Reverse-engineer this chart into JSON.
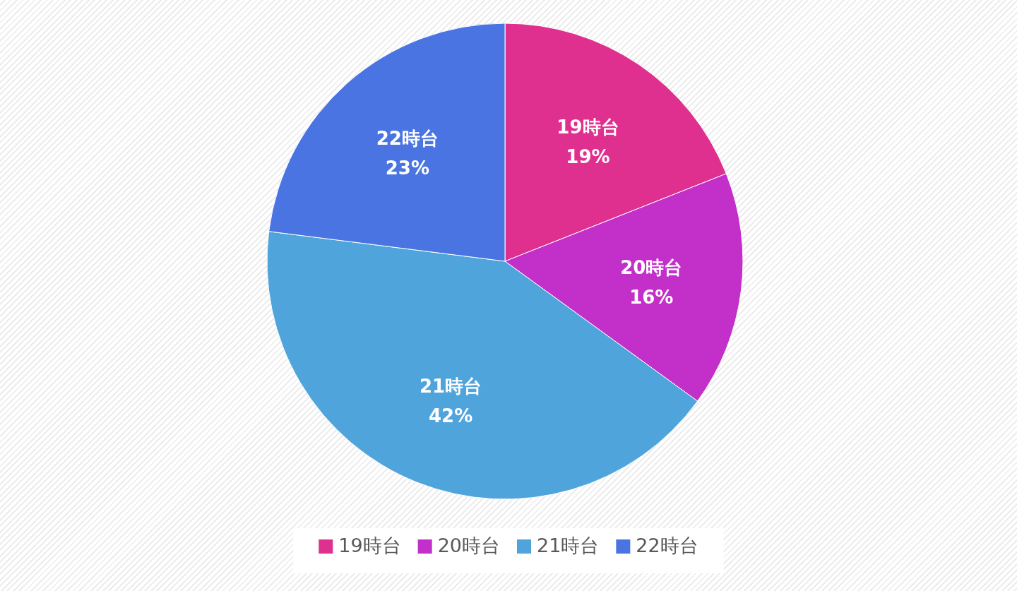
{
  "chart_data": {
    "type": "pie",
    "categories": [
      "19時台",
      "20時台",
      "21時台",
      "22時台"
    ],
    "values": [
      19,
      16,
      42,
      23
    ],
    "colors": [
      "#e0308f",
      "#c22fc9",
      "#4fa4dc",
      "#4a74e2"
    ],
    "value_labels": [
      "19%",
      "16%",
      "42%",
      "23%"
    ],
    "legend": "bottom"
  }
}
